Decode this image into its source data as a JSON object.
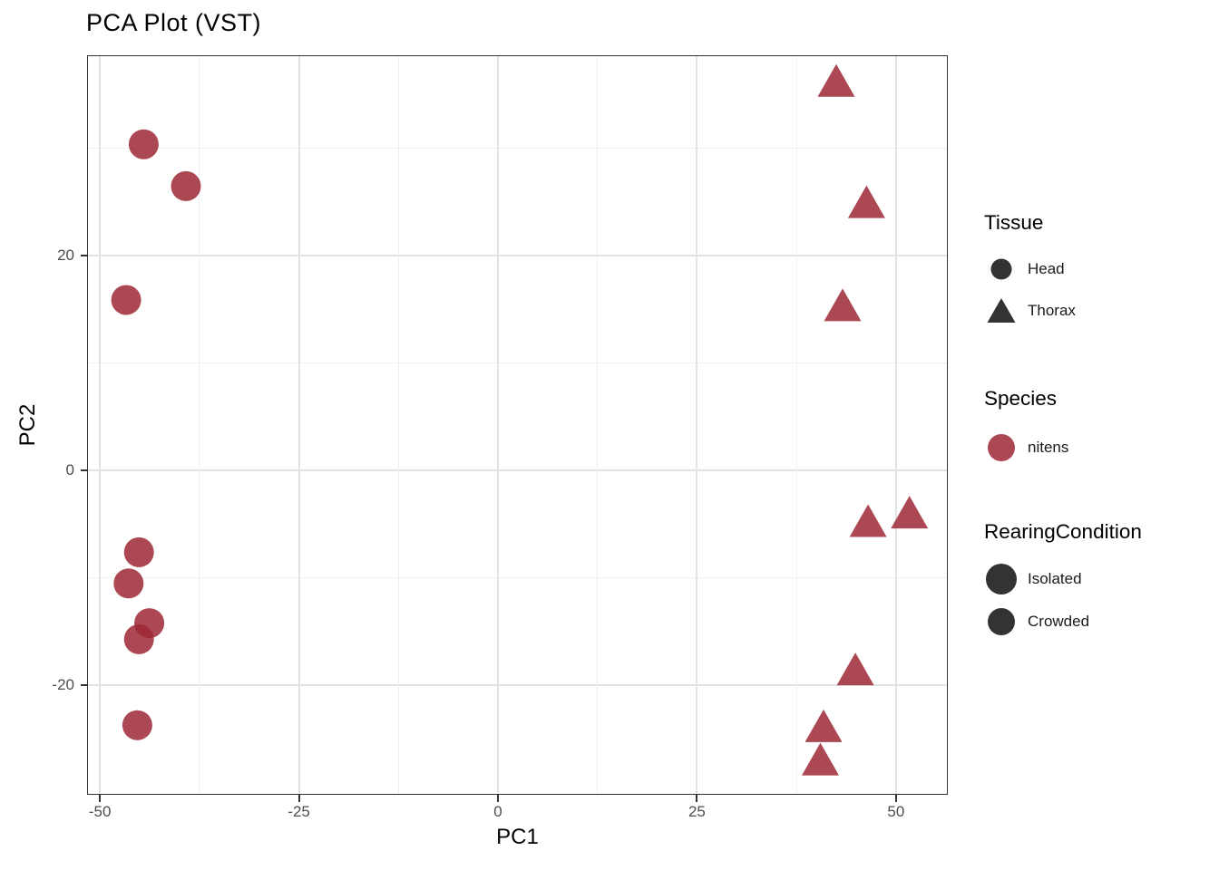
{
  "chart_data": {
    "type": "scatter",
    "title": "PCA Plot (VST)",
    "xlabel": "PC1",
    "ylabel": "PC2",
    "xlim": [
      -51.5,
      56.4
    ],
    "ylim": [
      -30.1,
      38.6
    ],
    "x_breaks": [
      -50,
      -25,
      0,
      25,
      50
    ],
    "x_tick_labels": [
      "-50",
      "-25",
      "0",
      "25",
      "50"
    ],
    "x_minor_breaks": [
      -37.5,
      -12.5,
      12.5,
      37.5
    ],
    "y_breaks": [
      20,
      0,
      -20
    ],
    "y_tick_labels": [
      "20",
      "0",
      "-20"
    ],
    "y_minor_breaks": [
      30,
      10,
      -10
    ],
    "grid": true,
    "legend_position": "right",
    "series": [
      {
        "name": "Head",
        "marker": "circle",
        "points": [
          [
            -44.5,
            30.4
          ],
          [
            -39.2,
            26.5
          ],
          [
            -46.7,
            15.9
          ],
          [
            -45.1,
            -7.6
          ],
          [
            -46.4,
            -10.5
          ],
          [
            -43.8,
            -14.2
          ],
          [
            -45.1,
            -15.7
          ],
          [
            -45.3,
            -23.7
          ]
        ]
      },
      {
        "name": "Thorax",
        "marker": "triangle",
        "points": [
          [
            42.5,
            36.3
          ],
          [
            46.3,
            25.0
          ],
          [
            43.3,
            15.4
          ],
          [
            46.5,
            -4.7
          ],
          [
            51.7,
            -3.9
          ],
          [
            44.9,
            -18.5
          ],
          [
            40.9,
            -23.8
          ],
          [
            40.5,
            -26.9
          ]
        ]
      }
    ]
  },
  "colors": {
    "point_fill": "#9E2835",
    "point_opacity": "0.85",
    "dark_glyph": "#333333",
    "glyph_stroke": "#1f1f1f",
    "species_fill": "#9E2835",
    "species_stroke": "#8E3038",
    "grid_major": "#E3E3E3",
    "grid_minor": "#F0F0F0",
    "panel_border": "#333333",
    "tick_label": "#4D4D4D"
  },
  "legend": {
    "groups": [
      {
        "title": "Tissue",
        "items": [
          {
            "label": "Head",
            "glyph": "circle"
          },
          {
            "label": "Thorax",
            "glyph": "triangle"
          }
        ]
      },
      {
        "title": "Species",
        "items": [
          {
            "label": "nitens",
            "glyph": "circle"
          }
        ]
      },
      {
        "title": "RearingCondition",
        "items": [
          {
            "label": "Isolated",
            "glyph": "circle"
          },
          {
            "label": "Crowded",
            "glyph": "circle"
          }
        ]
      }
    ]
  }
}
